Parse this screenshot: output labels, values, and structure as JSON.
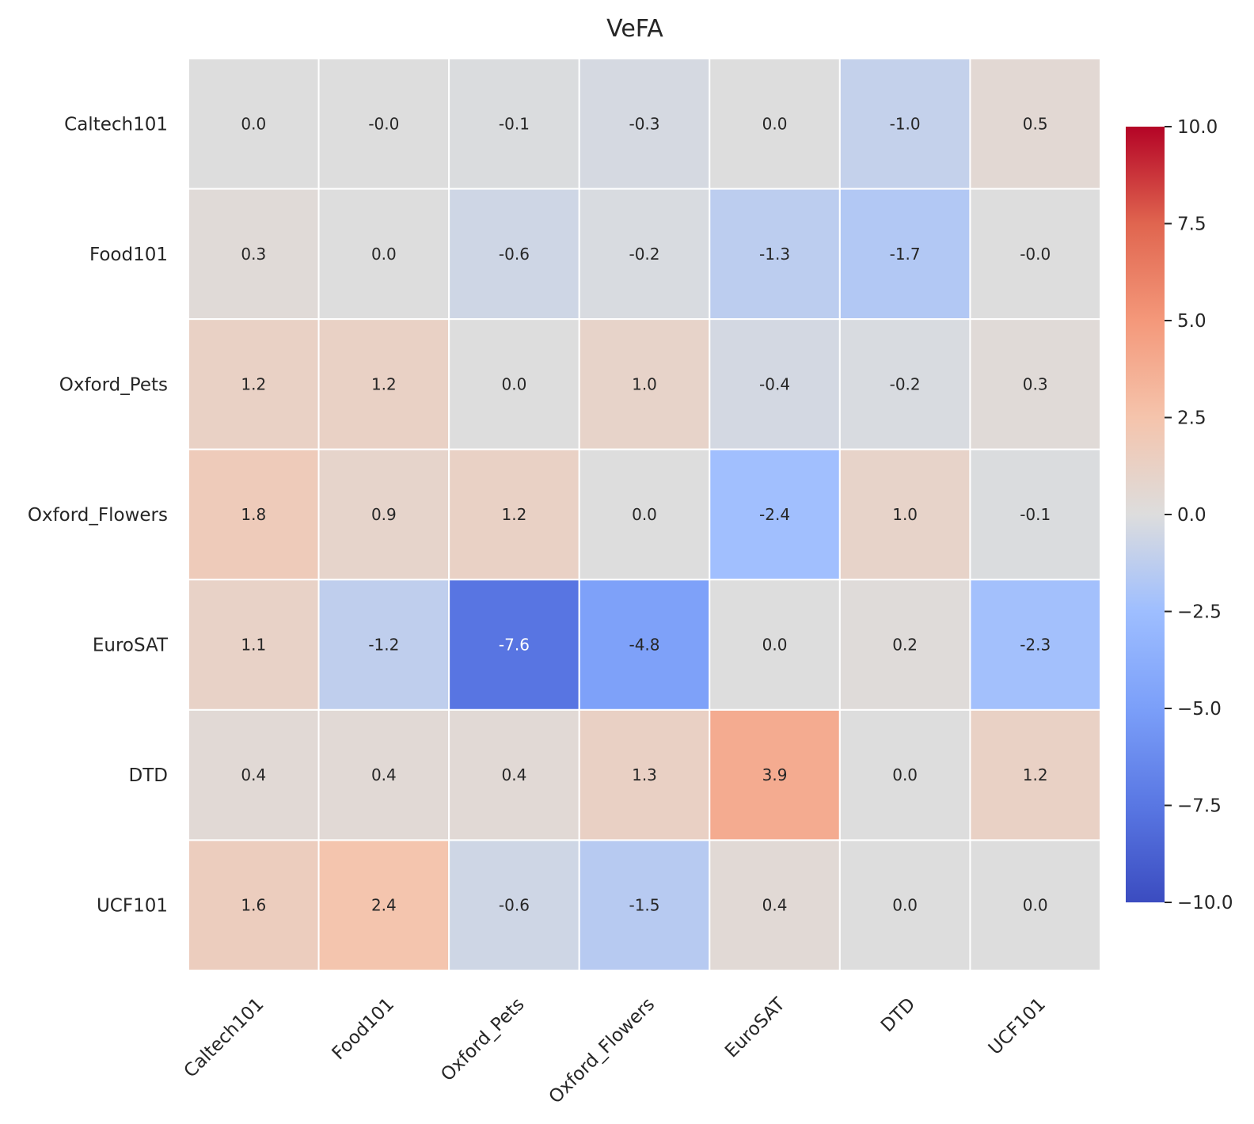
{
  "chart_data": {
    "type": "heatmap",
    "title": "VeFA",
    "rows": [
      "Caltech101",
      "Food101",
      "Oxford_Pets",
      "Oxford_Flowers",
      "EuroSAT",
      "DTD",
      "UCF101"
    ],
    "columns": [
      "Caltech101",
      "Food101",
      "Oxford_Pets",
      "Oxford_Flowers",
      "EuroSAT",
      "DTD",
      "UCF101"
    ],
    "values": [
      [
        0.0,
        -0.0,
        -0.1,
        -0.3,
        0.0,
        -1.0,
        0.5
      ],
      [
        0.3,
        0.0,
        -0.6,
        -0.2,
        -1.3,
        -1.7,
        -0.0
      ],
      [
        1.2,
        1.2,
        0.0,
        1.0,
        -0.4,
        -0.2,
        0.3
      ],
      [
        1.8,
        0.9,
        1.2,
        0.0,
        -2.4,
        1.0,
        -0.1
      ],
      [
        1.1,
        -1.2,
        -7.6,
        -4.8,
        0.0,
        0.2,
        -2.3
      ],
      [
        0.4,
        0.4,
        0.4,
        1.3,
        3.9,
        0.0,
        1.2
      ],
      [
        1.6,
        2.4,
        -0.6,
        -1.5,
        0.4,
        0.0,
        0.0
      ]
    ],
    "labels": [
      [
        "0.0",
        "-0.0",
        "-0.1",
        "-0.3",
        "0.0",
        "-1.0",
        "0.5"
      ],
      [
        "0.3",
        "0.0",
        "-0.6",
        "-0.2",
        "-1.3",
        "-1.7",
        "-0.0"
      ],
      [
        "1.2",
        "1.2",
        "0.0",
        "1.0",
        "-0.4",
        "-0.2",
        "0.3"
      ],
      [
        "1.8",
        "0.9",
        "1.2",
        "0.0",
        "-2.4",
        "1.0",
        "-0.1"
      ],
      [
        "1.1",
        "-1.2",
        "-7.6",
        "-4.8",
        "0.0",
        "0.2",
        "-2.3"
      ],
      [
        "0.4",
        "0.4",
        "0.4",
        "1.3",
        "3.9",
        "0.0",
        "1.2"
      ],
      [
        "1.6",
        "2.4",
        "-0.6",
        "-1.5",
        "0.4",
        "0.0",
        "0.0"
      ]
    ],
    "colormap": "coolwarm",
    "vmin": -10,
    "vmax": 10,
    "colorbar_ticks": [
      10.0,
      7.5,
      5.0,
      2.5,
      0.0,
      -2.5,
      -5.0,
      -7.5,
      -10.0
    ],
    "colorbar_tick_labels": [
      "10.0",
      "7.5",
      "5.0",
      "2.5",
      "0.0",
      "−2.5",
      "−5.0",
      "−7.5",
      "−10.0"
    ]
  }
}
